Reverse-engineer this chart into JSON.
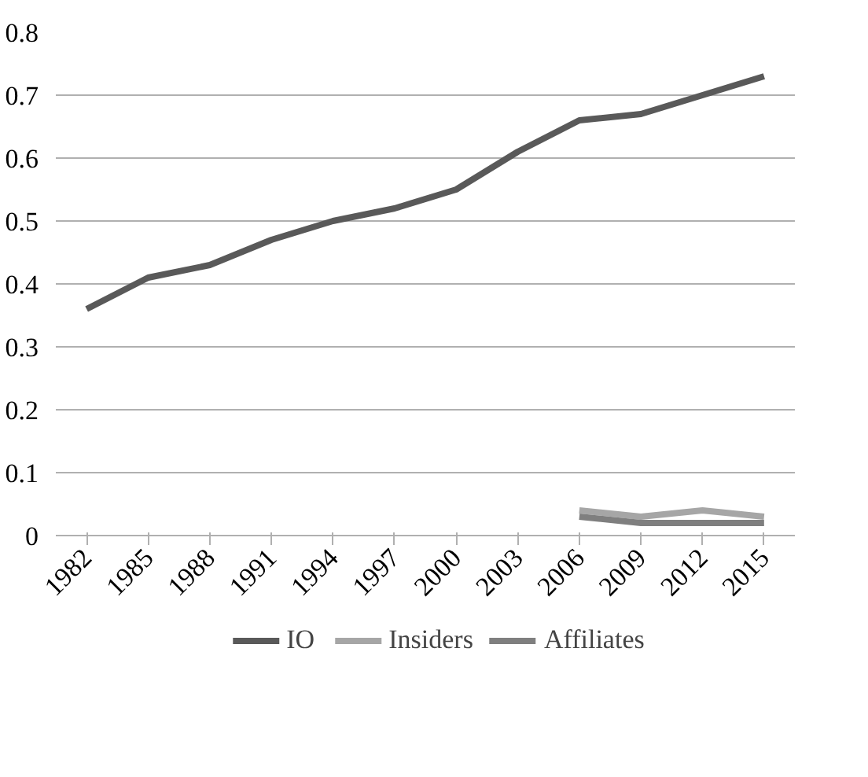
{
  "chart_data": {
    "type": "line",
    "categories": [
      "1982",
      "1985",
      "1988",
      "1991",
      "1994",
      "1997",
      "2000",
      "2003",
      "2006",
      "2009",
      "2012",
      "2015"
    ],
    "series": [
      {
        "name": "IO",
        "color": "#595959",
        "values": [
          0.36,
          0.41,
          0.43,
          0.47,
          0.5,
          0.52,
          0.55,
          0.61,
          0.66,
          0.67,
          0.7,
          0.73
        ]
      },
      {
        "name": "Insiders",
        "color": "#a6a6a6",
        "values": [
          null,
          null,
          null,
          null,
          null,
          null,
          null,
          null,
          0.04,
          0.03,
          0.04,
          0.03
        ]
      },
      {
        "name": "Affiliates",
        "color": "#7f7f7f",
        "values": [
          null,
          null,
          null,
          null,
          null,
          null,
          null,
          null,
          0.03,
          0.02,
          0.02,
          0.02
        ]
      }
    ],
    "ylim": [
      0,
      0.8
    ],
    "yticks": [
      0,
      0.1,
      0.2,
      0.3,
      0.4,
      0.5,
      0.6,
      0.7,
      0.8
    ],
    "grid": "y",
    "legend": "bottom",
    "line_style": "solid"
  }
}
